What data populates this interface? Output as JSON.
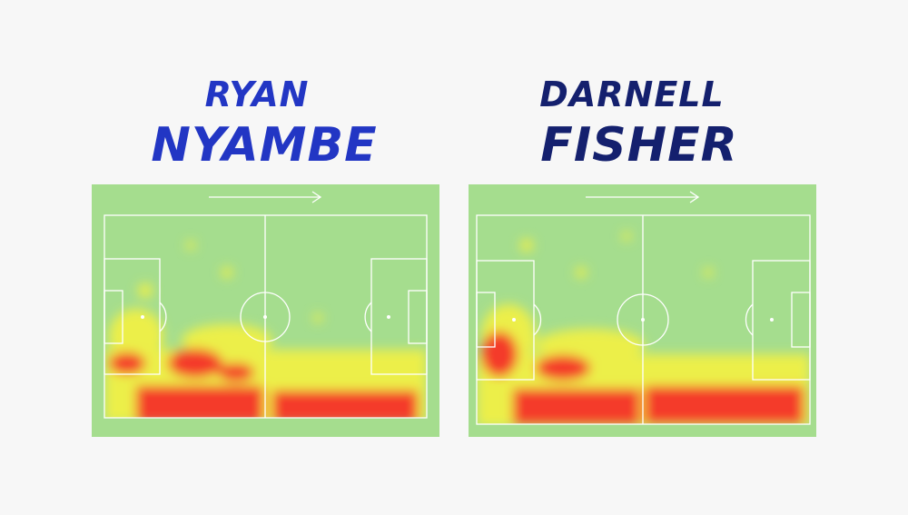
{
  "players": [
    {
      "first_name": "RYAN",
      "last_name": "NYAMBE"
    },
    {
      "first_name": "DARNELL",
      "last_name": "FISHER"
    }
  ]
}
